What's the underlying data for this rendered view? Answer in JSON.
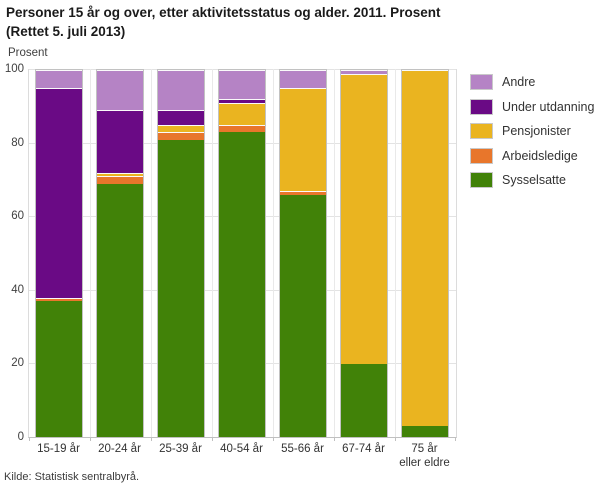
{
  "title": {
    "line1": "Personer 15 år og over, etter aktivitetsstatus og alder. 2011. Prosent",
    "line2": "(Rettet 5. juli 2013)"
  },
  "axes": {
    "y_axis_title": "Prosent",
    "y_ticks": [
      100,
      80,
      60,
      40,
      20,
      0
    ]
  },
  "source": "Kilde: Statistisk sentralbyrå.",
  "colors": {
    "grid": "#e3e3e3",
    "axis": "#c0c0c0",
    "bar_border": "#c2c2c2"
  },
  "chart_data": {
    "type": "bar",
    "stacked": true,
    "title": "Personer 15 år og over, etter aktivitetsstatus og alder. 2011. Prosent (Rettet 5. juli 2013)",
    "ylabel": "Prosent",
    "ylim": [
      0,
      100
    ],
    "grid": true,
    "legend_position": "right",
    "categories": [
      "15-19 år",
      "20-24 år",
      "25-39 år",
      "40-54 år",
      "55-66 år",
      "67-74 år",
      "75 år\neller eldre"
    ],
    "series": [
      {
        "name": "Sysselsatte",
        "color": "#418208",
        "values": [
          37,
          69,
          81,
          83,
          66,
          20,
          3
        ]
      },
      {
        "name": "Arbeidsledige",
        "color": "#e8762b",
        "values": [
          1,
          2,
          2,
          2,
          1,
          0,
          0
        ]
      },
      {
        "name": "Pensjonister",
        "color": "#eab420",
        "values": [
          0,
          1,
          2,
          6,
          28,
          79,
          97
        ]
      },
      {
        "name": "Under utdanning",
        "color": "#6a0a85",
        "values": [
          57,
          17,
          4,
          1,
          0,
          0,
          0
        ]
      },
      {
        "name": "Andre",
        "color": "#b583c5",
        "values": [
          5,
          11,
          11,
          8,
          5,
          1,
          0
        ]
      }
    ],
    "legend_order_top_to_bottom": [
      "Andre",
      "Under utdanning",
      "Pensjonister",
      "Arbeidsledige",
      "Sysselsatte"
    ]
  }
}
